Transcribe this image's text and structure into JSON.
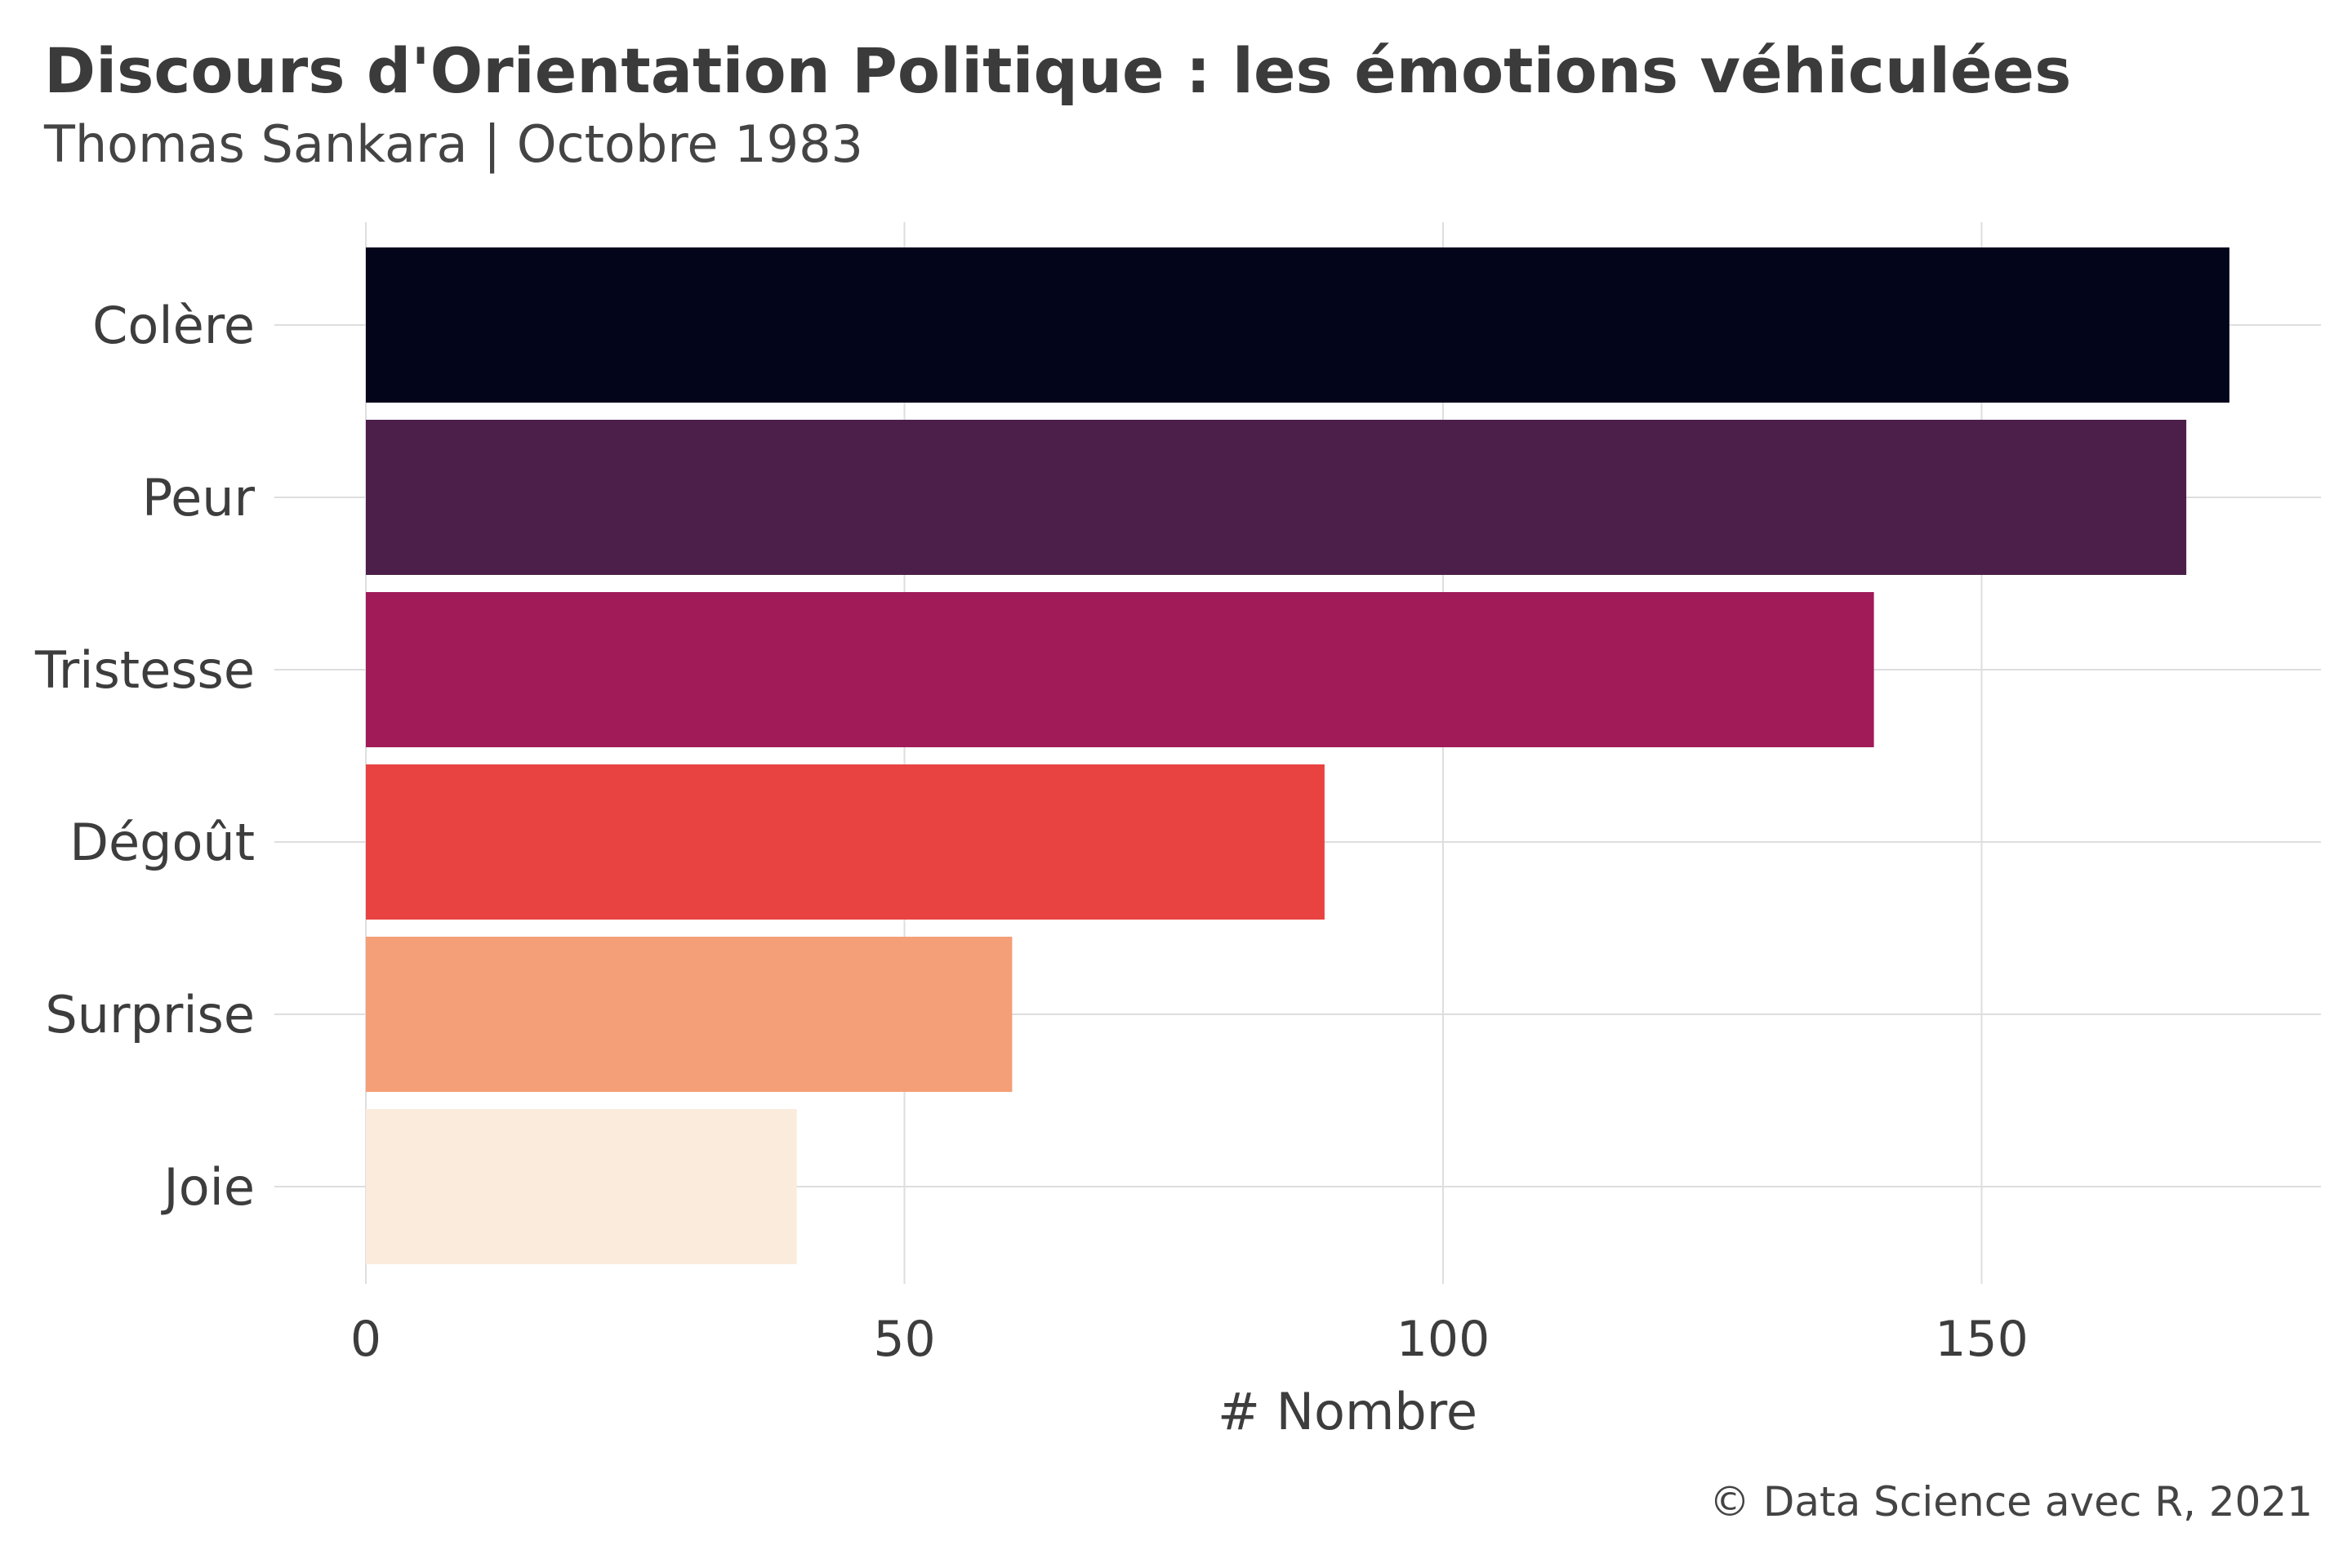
{
  "chart_data": {
    "type": "bar",
    "orientation": "horizontal",
    "title": "Discours d'Orientation Politique : les émotions véhiculées",
    "subtitle": "Thomas Sankara | Octobre 1983",
    "xlabel": "# Nombre",
    "ylabel": "",
    "caption": "© Data Science avec R, 2021",
    "categories": [
      "Colère",
      "Peur",
      "Tristesse",
      "Dégoût",
      "Surprise",
      "Joie"
    ],
    "values": [
      173,
      169,
      140,
      89,
      60,
      40
    ],
    "colors": [
      "#03061a",
      "#4c1e4a",
      "#a01b58",
      "#e84340",
      "#f49f77",
      "#faebdd"
    ],
    "xlim": [
      0,
      181
    ],
    "xticks": [
      0,
      50,
      100,
      150
    ],
    "grid": true,
    "legend": "none"
  }
}
